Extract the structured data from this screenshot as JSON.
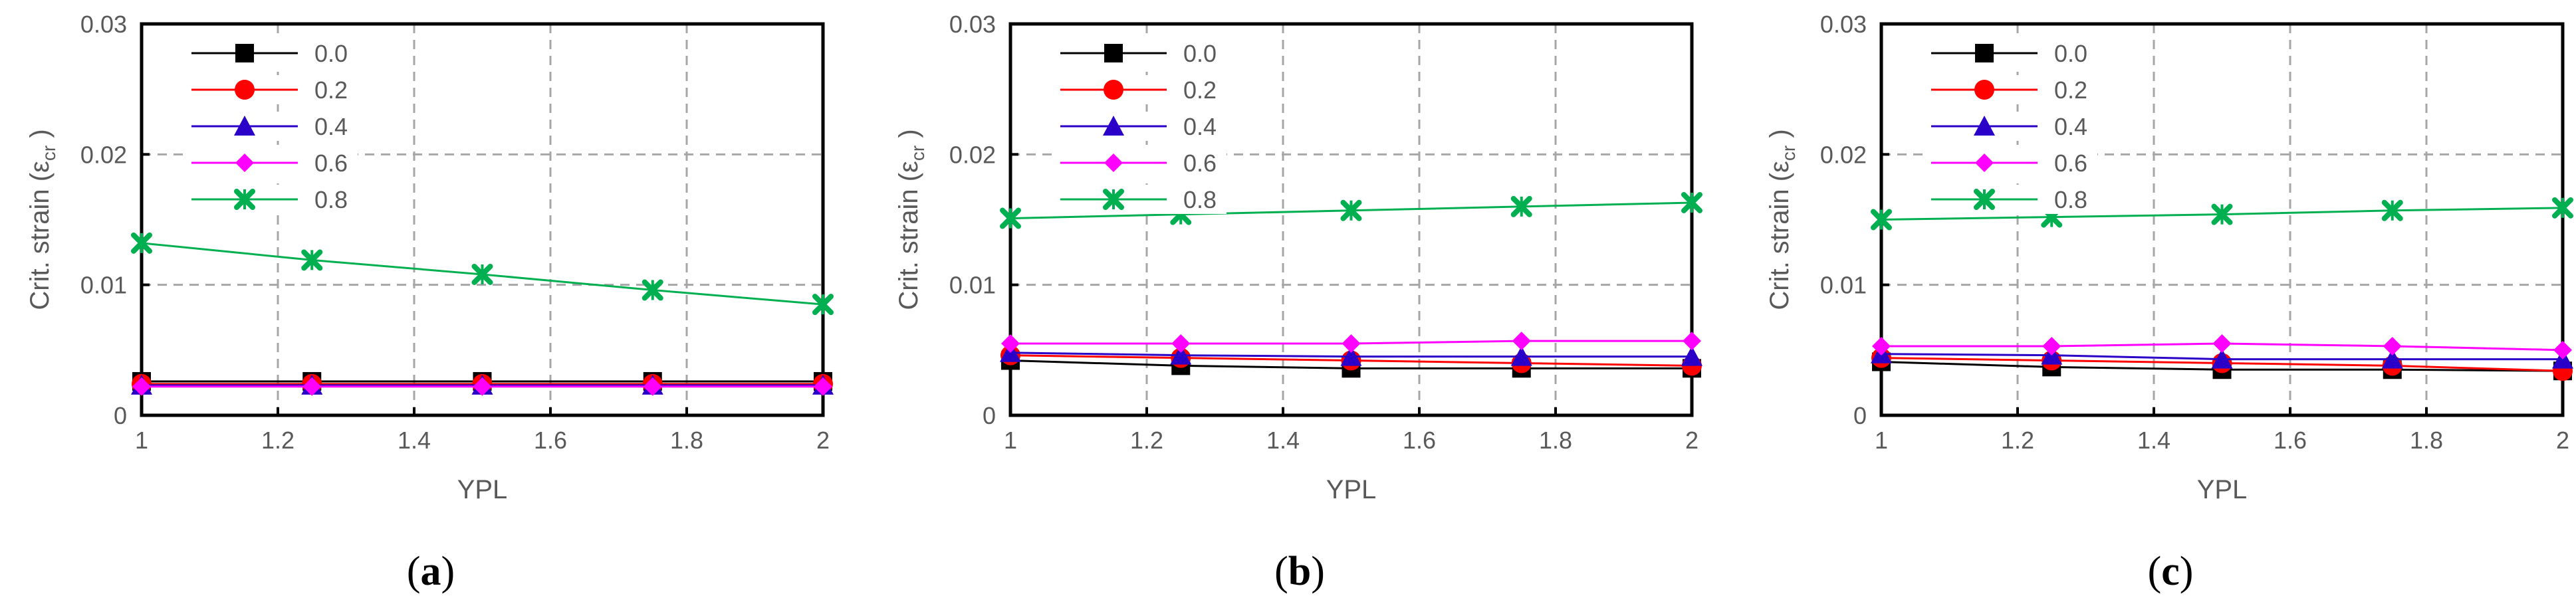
{
  "figure": {
    "panels": [
      {
        "id": "a",
        "caption_open": "(",
        "caption_letter": "a",
        "caption_close": ")",
        "chart_data": {
          "type": "line",
          "xlabel": "YPL",
          "ylabel_main": "Crit. strain (ε",
          "ylabel_sub": "cr",
          "ylabel_close": " )",
          "xlim": [
            1,
            2
          ],
          "ylim": [
            0,
            0.03
          ],
          "x_ticks": [
            "1",
            "1.2",
            "1.4",
            "1.6",
            "1.8",
            "2"
          ],
          "y_ticks": [
            "0",
            "0.01",
            "0.02",
            "0.03"
          ],
          "grid": true,
          "legend_position": "top-left",
          "x": [
            1,
            1.25,
            1.5,
            1.75,
            2
          ],
          "series": [
            {
              "name": "0.0",
              "color": "#000000",
              "marker": "square",
              "values": [
                0.0026,
                0.0026,
                0.0026,
                0.0026,
                0.0026
              ]
            },
            {
              "name": "0.2",
              "color": "#ff0000",
              "marker": "circle",
              "values": [
                0.0024,
                0.0024,
                0.0024,
                0.0024,
                0.0024
              ]
            },
            {
              "name": "0.4",
              "color": "#2a00c8",
              "marker": "triangle",
              "values": [
                0.0023,
                0.0023,
                0.0023,
                0.0023,
                0.0023
              ]
            },
            {
              "name": "0.6",
              "color": "#ff00ff",
              "marker": "diamond",
              "values": [
                0.0022,
                0.0022,
                0.0022,
                0.0022,
                0.0022
              ]
            },
            {
              "name": "0.8",
              "color": "#00b050",
              "marker": "star",
              "values": [
                0.0132,
                0.0119,
                0.0108,
                0.0096,
                0.0085
              ]
            }
          ]
        }
      },
      {
        "id": "b",
        "caption_open": "(",
        "caption_letter": "b",
        "caption_close": ")",
        "chart_data": {
          "type": "line",
          "xlabel": "YPL",
          "ylabel_main": "Crit. strain (ε",
          "ylabel_sub": "cr",
          "ylabel_close": " )",
          "xlim": [
            1,
            2
          ],
          "ylim": [
            0,
            0.03
          ],
          "x_ticks": [
            "1",
            "1.2",
            "1.4",
            "1.6",
            "1.8",
            "2"
          ],
          "y_ticks": [
            "0",
            "0.01",
            "0.02",
            "0.03"
          ],
          "grid": true,
          "legend_position": "top-left",
          "x": [
            1,
            1.25,
            1.5,
            1.75,
            2
          ],
          "series": [
            {
              "name": "0.0",
              "color": "#000000",
              "marker": "square",
              "values": [
                0.0042,
                0.0038,
                0.0036,
                0.0036,
                0.0036
              ]
            },
            {
              "name": "0.2",
              "color": "#ff0000",
              "marker": "circle",
              "values": [
                0.0046,
                0.0044,
                0.0042,
                0.004,
                0.0038
              ]
            },
            {
              "name": "0.4",
              "color": "#2a00c8",
              "marker": "triangle",
              "values": [
                0.0048,
                0.0046,
                0.0045,
                0.0045,
                0.0045
              ]
            },
            {
              "name": "0.6",
              "color": "#ff00ff",
              "marker": "diamond",
              "values": [
                0.0055,
                0.0055,
                0.0055,
                0.0057,
                0.0057
              ]
            },
            {
              "name": "0.8",
              "color": "#00b050",
              "marker": "star",
              "values": [
                0.0151,
                0.0154,
                0.0157,
                0.016,
                0.0163
              ]
            }
          ]
        }
      },
      {
        "id": "c",
        "caption_open": "(",
        "caption_letter": "c",
        "caption_close": ")",
        "chart_data": {
          "type": "line",
          "xlabel": "YPL",
          "ylabel_main": "Crit. strain (ε",
          "ylabel_sub": "cr",
          "ylabel_close": " )",
          "xlim": [
            1,
            2
          ],
          "ylim": [
            0,
            0.03
          ],
          "x_ticks": [
            "1",
            "1.2",
            "1.4",
            "1.6",
            "1.8",
            "2"
          ],
          "y_ticks": [
            "0",
            "0.01",
            "0.02",
            "0.03"
          ],
          "grid": true,
          "legend_position": "top-left",
          "x": [
            1,
            1.25,
            1.5,
            1.75,
            2
          ],
          "series": [
            {
              "name": "0.0",
              "color": "#000000",
              "marker": "square",
              "values": [
                0.0041,
                0.0037,
                0.0035,
                0.0035,
                0.0034
              ]
            },
            {
              "name": "0.2",
              "color": "#ff0000",
              "marker": "circle",
              "values": [
                0.0044,
                0.0042,
                0.004,
                0.0038,
                0.0034
              ]
            },
            {
              "name": "0.4",
              "color": "#2a00c8",
              "marker": "triangle",
              "values": [
                0.0047,
                0.0046,
                0.0043,
                0.0043,
                0.0043
              ]
            },
            {
              "name": "0.6",
              "color": "#ff00ff",
              "marker": "diamond",
              "values": [
                0.0053,
                0.0053,
                0.0055,
                0.0053,
                0.005
              ]
            },
            {
              "name": "0.8",
              "color": "#00b050",
              "marker": "star",
              "values": [
                0.015,
                0.0152,
                0.0154,
                0.0157,
                0.0159
              ]
            }
          ]
        }
      }
    ]
  }
}
